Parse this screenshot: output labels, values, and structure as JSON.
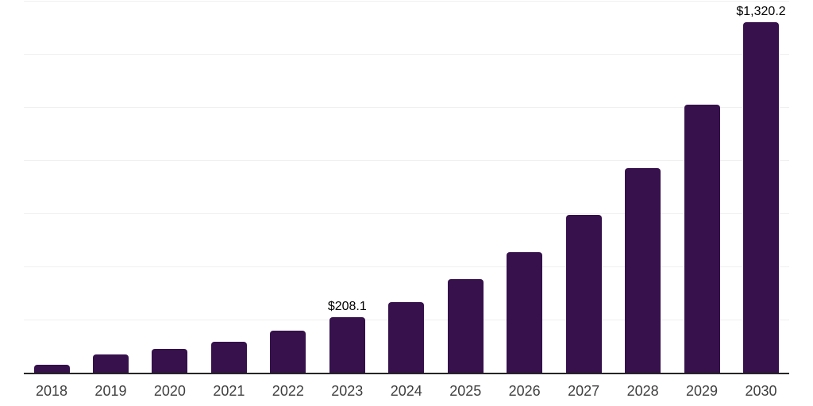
{
  "chart_data": {
    "type": "bar",
    "title": "",
    "xlabel": "",
    "ylabel": "",
    "categories": [
      "2018",
      "2019",
      "2020",
      "2021",
      "2022",
      "2023",
      "2024",
      "2025",
      "2026",
      "2027",
      "2028",
      "2029",
      "2030"
    ],
    "values": [
      29,
      68,
      90,
      117,
      157,
      208.1,
      267,
      352,
      453,
      593,
      771,
      1008,
      1320.2
    ],
    "data_labels": {
      "2023": "$208.1",
      "2030": "$1,320.2"
    },
    "ylim": [
      0,
      1400
    ],
    "gridline_step": 200,
    "grid": true,
    "legend": "none",
    "y_tick_labels_visible": false,
    "bar_color": "#36114c",
    "axis_line_color": "#262626",
    "gridline_color": "#f0f0f0",
    "x_tick_label_color": "#3f3f3f",
    "data_label_color": "#000000"
  }
}
